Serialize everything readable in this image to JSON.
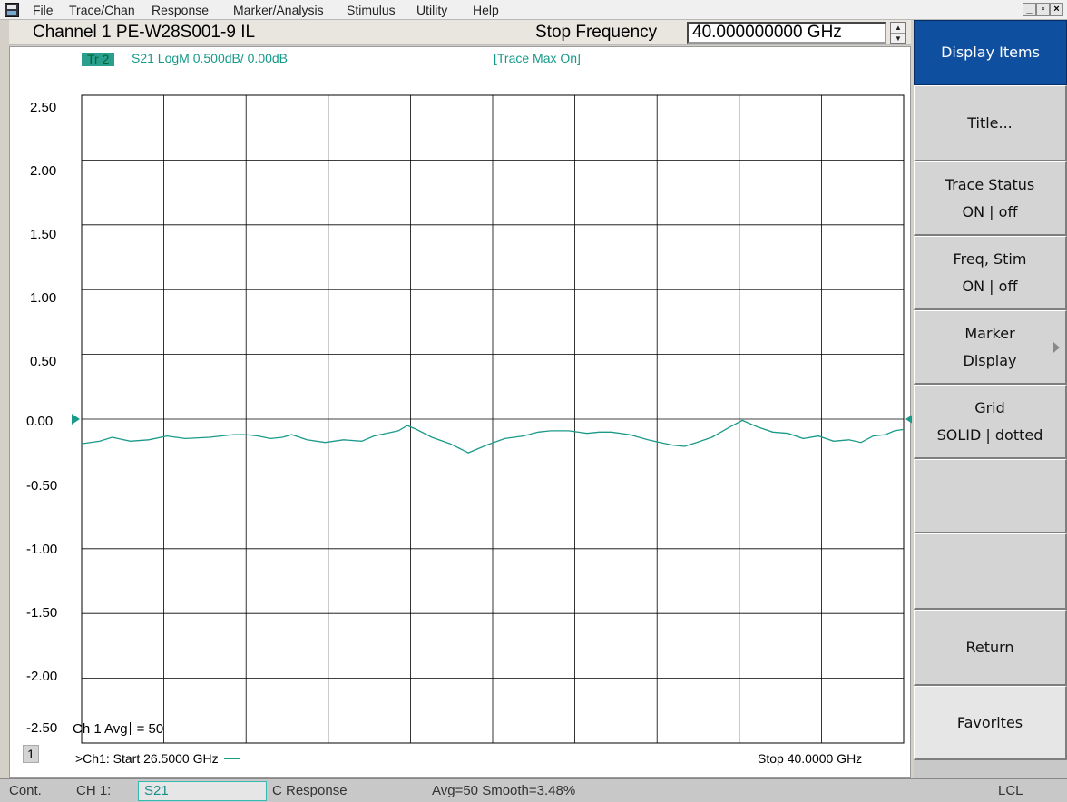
{
  "menubar": {
    "items": [
      "File",
      "Trace/Chan",
      "Response",
      "Marker/Analysis",
      "Stimulus",
      "Utility",
      "Help"
    ],
    "window_buttons": [
      "_",
      "̅",
      "×"
    ]
  },
  "header": {
    "channel_title": "Channel 1  PE-W28S001-9 IL",
    "stop_frequency_label": "Stop Frequency",
    "stop_frequency_value": "40.000000000 GHz",
    "spinner_up": "▲",
    "spinner_down": "▼"
  },
  "plot": {
    "trace_tag": "Tr  2",
    "trace_info": "S21  LogM  0.500dB/  0.00dB",
    "trace_max": "[Trace Max On]",
    "y_tick_labels": [
      "2.50",
      "2.00",
      "1.50",
      "1.00",
      "0.50",
      "0.00",
      "-0.50",
      "-1.00",
      "-1.50",
      "-2.00",
      "-2.50"
    ],
    "avg_label": "Ch 1 Avg",
    "avg_value": "=   50",
    "channel_number": "1",
    "start_text": ">Ch1: Start  26.5000 GHz",
    "stop_text": "Stop  40.0000 GHz",
    "trace_color": "#1a9a8a",
    "grid_color": "#000000"
  },
  "chart_data": {
    "type": "line",
    "title": "",
    "xlabel": "",
    "ylabel": "",
    "x_range_ghz": [
      26.5,
      40.0
    ],
    "ylim": [
      -2.5,
      2.5
    ],
    "y_ticks": [
      2.5,
      2.0,
      1.5,
      1.0,
      0.5,
      0.0,
      -0.5,
      -1.0,
      -1.5,
      -2.0,
      -2.5
    ],
    "x_divisions": 10,
    "y_divisions": 10,
    "grid": true,
    "reference_level_db": 0.0,
    "series": [
      {
        "name": "S21",
        "x": [
          26.5,
          26.8,
          27.0,
          27.3,
          27.6,
          27.9,
          28.2,
          28.6,
          29.0,
          29.2,
          29.4,
          29.6,
          29.8,
          29.95,
          30.2,
          30.5,
          30.8,
          31.1,
          31.3,
          31.5,
          31.7,
          31.85,
          32.0,
          32.25,
          32.55,
          32.85,
          33.15,
          33.45,
          33.75,
          34.0,
          34.2,
          34.5,
          34.8,
          35.0,
          35.2,
          35.5,
          35.8,
          36.0,
          36.2,
          36.4,
          36.6,
          36.85,
          37.0,
          37.15,
          37.35,
          37.6,
          37.85,
          38.1,
          38.35,
          38.6,
          38.85,
          39.1,
          39.3,
          39.5,
          39.7,
          39.85,
          40.0
        ],
        "y": [
          -0.19,
          -0.17,
          -0.14,
          -0.17,
          -0.16,
          -0.13,
          -0.15,
          -0.14,
          -0.12,
          -0.12,
          -0.13,
          -0.15,
          -0.14,
          -0.12,
          -0.16,
          -0.18,
          -0.16,
          -0.17,
          -0.13,
          -0.11,
          -0.09,
          -0.05,
          -0.08,
          -0.14,
          -0.19,
          -0.26,
          -0.2,
          -0.15,
          -0.13,
          -0.1,
          -0.09,
          -0.09,
          -0.11,
          -0.1,
          -0.1,
          -0.12,
          -0.16,
          -0.18,
          -0.2,
          -0.21,
          -0.18,
          -0.14,
          -0.1,
          -0.06,
          -0.01,
          -0.06,
          -0.1,
          -0.11,
          -0.15,
          -0.13,
          -0.17,
          -0.16,
          -0.18,
          -0.13,
          -0.12,
          -0.09,
          -0.08
        ]
      }
    ]
  },
  "softkeys": [
    {
      "name": "softkey-display-items",
      "lines": [
        "Display Items"
      ],
      "kind": "header"
    },
    {
      "name": "softkey-title",
      "lines": [
        "Title..."
      ]
    },
    {
      "name": "softkey-trace-status",
      "lines": [
        "Trace Status",
        "ON | off"
      ]
    },
    {
      "name": "softkey-freq-stim",
      "lines": [
        "Freq, Stim",
        "ON | off"
      ]
    },
    {
      "name": "softkey-marker-display",
      "lines": [
        "Marker",
        "Display"
      ],
      "submenu": true
    },
    {
      "name": "softkey-grid",
      "lines": [
        "Grid",
        "SOLID | dotted"
      ]
    },
    {
      "name": "softkey-blank-1",
      "lines": []
    },
    {
      "name": "softkey-blank-2",
      "lines": []
    },
    {
      "name": "softkey-return",
      "lines": [
        "Return"
      ]
    },
    {
      "name": "softkey-favorites",
      "lines": [
        "Favorites"
      ],
      "kind": "favorites"
    }
  ],
  "statusbar": {
    "mode": "Cont.",
    "channel": "CH 1:",
    "parameter": "S21",
    "correction": "C  Response",
    "averaging": "Avg=50  Smooth=3.48%",
    "remote": "LCL"
  }
}
